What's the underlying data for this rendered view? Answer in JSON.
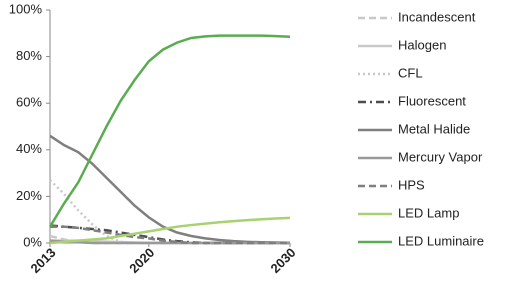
{
  "chart_data": {
    "type": "line",
    "x": [
      2013,
      2014,
      2015,
      2016,
      2017,
      2018,
      2019,
      2020,
      2021,
      2022,
      2023,
      2024,
      2025,
      2026,
      2027,
      2028,
      2029,
      2030
    ],
    "xlim": [
      2013,
      2030
    ],
    "xticks": [
      2013,
      2020,
      2030
    ],
    "ylim": [
      0,
      100
    ],
    "yticks": [
      {
        "value": 0,
        "label": "0%"
      },
      {
        "value": 20,
        "label": "20%"
      },
      {
        "value": 40,
        "label": "40%"
      },
      {
        "value": 60,
        "label": "60%"
      },
      {
        "value": 80,
        "label": "80%"
      },
      {
        "value": 100,
        "label": "100%"
      }
    ],
    "grid": false,
    "legend": "right",
    "series": [
      {
        "name": "Incandescent",
        "color": "#c8c8c8",
        "style": "dashed",
        "values": [
          3,
          1.5,
          0.5,
          0,
          0,
          0,
          0,
          0,
          0,
          0,
          0,
          0,
          0,
          0,
          0,
          0,
          0,
          0
        ]
      },
      {
        "name": "Halogen",
        "color": "#c8c8c8",
        "style": "solid",
        "values": [
          1,
          1,
          1,
          0.8,
          0.6,
          0.4,
          0.2,
          0.1,
          0,
          0,
          0,
          0,
          0,
          0,
          0,
          0,
          0,
          0
        ]
      },
      {
        "name": "CFL",
        "color": "#c8c8c8",
        "style": "dotted",
        "values": [
          27,
          21,
          14,
          8,
          3,
          0.5,
          0,
          0,
          0,
          0,
          0,
          0,
          0,
          0,
          0,
          0,
          0,
          0
        ]
      },
      {
        "name": "Fluorescent",
        "color": "#4d4d4d",
        "style": "dash-dot",
        "values": [
          7.5,
          7,
          6.5,
          6,
          5.5,
          4.5,
          3.5,
          2.5,
          1.5,
          0.8,
          0.3,
          0,
          0,
          0,
          0,
          0,
          0,
          0
        ]
      },
      {
        "name": "Metal Halide",
        "color": "#7f7f7f",
        "style": "solid",
        "values": [
          46,
          42,
          39,
          34,
          28,
          22,
          16,
          11,
          7,
          4.5,
          3,
          2,
          1.3,
          0.8,
          0.5,
          0.3,
          0.2,
          0.1
        ]
      },
      {
        "name": "Mercury Vapor",
        "color": "#999999",
        "style": "solid",
        "values": [
          1,
          0.6,
          0.3,
          0,
          0,
          0,
          0,
          0,
          0,
          0,
          0,
          0,
          0,
          0,
          0,
          0,
          0,
          0
        ]
      },
      {
        "name": "HPS",
        "color": "#7f7f7f",
        "style": "dashed",
        "values": [
          7,
          7,
          6.5,
          5.5,
          4.5,
          3.5,
          2.5,
          2,
          1,
          0.5,
          0,
          0,
          0,
          0,
          0,
          0,
          0,
          0
        ]
      },
      {
        "name": "LED Lamp",
        "color": "#a9d16f",
        "style": "solid",
        "values": [
          0,
          0.5,
          1,
          1.5,
          2,
          3,
          4,
          5,
          6,
          7,
          7.7,
          8.3,
          8.9,
          9.4,
          9.8,
          10.2,
          10.5,
          10.8
        ]
      },
      {
        "name": "LED Luminaire",
        "color": "#5aac52",
        "style": "solid",
        "values": [
          7,
          17,
          26,
          38,
          50,
          61,
          70,
          78,
          83,
          86,
          88,
          88.7,
          89,
          89,
          89,
          89,
          88.8,
          88.5
        ]
      }
    ]
  }
}
